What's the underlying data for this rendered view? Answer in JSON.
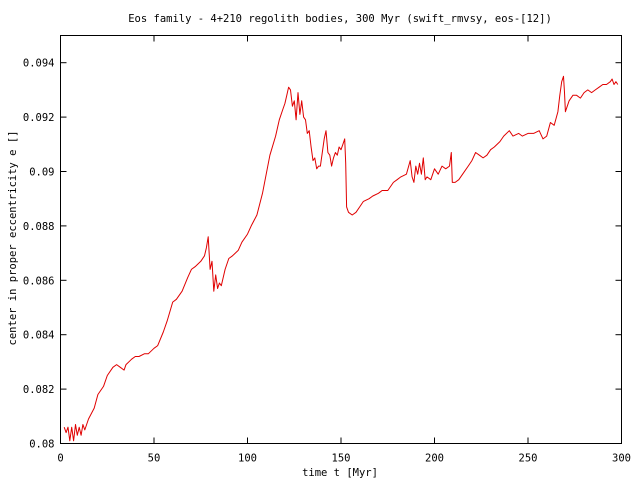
{
  "chart_data": {
    "type": "line",
    "title": "Eos family - 4+210 regolith bodies, 300 Myr (swift_rmvsy, eos-[12])",
    "xlabel": "time t [Myr]",
    "ylabel": "center in proper eccentricity e []",
    "xlim": [
      0,
      300
    ],
    "ylim": [
      0.08,
      0.095
    ],
    "xticks": [
      0,
      50,
      100,
      150,
      200,
      250,
      300
    ],
    "xtick_labels": [
      "0",
      "50",
      "100",
      "150",
      "200",
      "250",
      "300"
    ],
    "yticks": [
      0.08,
      0.082,
      0.084,
      0.086,
      0.088,
      0.09,
      0.092,
      0.094
    ],
    "ytick_labels": [
      "0.08",
      "0.082",
      "0.084",
      "0.086",
      "0.088",
      "0.09",
      "0.092",
      "0.094"
    ],
    "grid": false,
    "legend": "none",
    "series": [
      {
        "color": "#e00000",
        "points": [
          [
            2,
            0.0806
          ],
          [
            3,
            0.0804
          ],
          [
            4,
            0.0806
          ],
          [
            5,
            0.0801
          ],
          [
            6,
            0.0806
          ],
          [
            7,
            0.0801
          ],
          [
            8,
            0.0807
          ],
          [
            9,
            0.0803
          ],
          [
            10,
            0.0806
          ],
          [
            11,
            0.0803
          ],
          [
            12,
            0.0807
          ],
          [
            13,
            0.0805
          ],
          [
            15,
            0.0809
          ],
          [
            18,
            0.0813
          ],
          [
            20,
            0.0818
          ],
          [
            23,
            0.0821
          ],
          [
            25,
            0.0825
          ],
          [
            28,
            0.0828
          ],
          [
            30,
            0.0829
          ],
          [
            32,
            0.0828
          ],
          [
            34,
            0.0827
          ],
          [
            35,
            0.0829
          ],
          [
            38,
            0.0831
          ],
          [
            40,
            0.0832
          ],
          [
            42,
            0.0832
          ],
          [
            45,
            0.0833
          ],
          [
            47,
            0.0833
          ],
          [
            50,
            0.0835
          ],
          [
            52,
            0.0836
          ],
          [
            55,
            0.0841
          ],
          [
            57,
            0.0845
          ],
          [
            60,
            0.0852
          ],
          [
            62,
            0.0853
          ],
          [
            65,
            0.0856
          ],
          [
            68,
            0.0861
          ],
          [
            70,
            0.0864
          ],
          [
            72,
            0.0865
          ],
          [
            75,
            0.0867
          ],
          [
            77,
            0.0869
          ],
          [
            78,
            0.0872
          ],
          [
            79,
            0.0876
          ],
          [
            80,
            0.0864
          ],
          [
            81,
            0.0867
          ],
          [
            82,
            0.0856
          ],
          [
            83,
            0.0862
          ],
          [
            84,
            0.0857
          ],
          [
            85,
            0.0859
          ],
          [
            86,
            0.0858
          ],
          [
            88,
            0.0864
          ],
          [
            90,
            0.0868
          ],
          [
            92,
            0.0869
          ],
          [
            95,
            0.0871
          ],
          [
            97,
            0.0874
          ],
          [
            100,
            0.0877
          ],
          [
            102,
            0.088
          ],
          [
            105,
            0.0884
          ],
          [
            108,
            0.0892
          ],
          [
            110,
            0.0899
          ],
          [
            112,
            0.0906
          ],
          [
            115,
            0.0913
          ],
          [
            117,
            0.0919
          ],
          [
            119,
            0.0923
          ],
          [
            120,
            0.0925
          ],
          [
            121,
            0.0928
          ],
          [
            122,
            0.0931
          ],
          [
            123,
            0.093
          ],
          [
            124,
            0.0924
          ],
          [
            125,
            0.0926
          ],
          [
            126,
            0.0919
          ],
          [
            127,
            0.0929
          ],
          [
            128,
            0.0921
          ],
          [
            129,
            0.0926
          ],
          [
            130,
            0.092
          ],
          [
            131,
            0.0919
          ],
          [
            132,
            0.0914
          ],
          [
            133,
            0.0915
          ],
          [
            134,
            0.0909
          ],
          [
            135,
            0.0904
          ],
          [
            136,
            0.0905
          ],
          [
            137,
            0.0901
          ],
          [
            138,
            0.0902
          ],
          [
            139,
            0.0902
          ],
          [
            140,
            0.0907
          ],
          [
            141,
            0.0912
          ],
          [
            142,
            0.0915
          ],
          [
            143,
            0.0907
          ],
          [
            144,
            0.0906
          ],
          [
            145,
            0.0902
          ],
          [
            146,
            0.0905
          ],
          [
            147,
            0.0907
          ],
          [
            148,
            0.0906
          ],
          [
            149,
            0.0909
          ],
          [
            150,
            0.0908
          ],
          [
            151,
            0.091
          ],
          [
            152,
            0.0912
          ],
          [
            152.5,
            0.0903
          ],
          [
            153,
            0.0887
          ],
          [
            154,
            0.0885
          ],
          [
            156,
            0.0884
          ],
          [
            158,
            0.0885
          ],
          [
            160,
            0.0887
          ],
          [
            162,
            0.0889
          ],
          [
            165,
            0.089
          ],
          [
            167,
            0.0891
          ],
          [
            170,
            0.0892
          ],
          [
            172,
            0.0893
          ],
          [
            175,
            0.0893
          ],
          [
            178,
            0.0896
          ],
          [
            180,
            0.0897
          ],
          [
            182,
            0.0898
          ],
          [
            185,
            0.0899
          ],
          [
            187,
            0.0904
          ],
          [
            188,
            0.0898
          ],
          [
            189,
            0.0896
          ],
          [
            190,
            0.0902
          ],
          [
            191,
            0.0899
          ],
          [
            192,
            0.0903
          ],
          [
            193,
            0.0899
          ],
          [
            194,
            0.0905
          ],
          [
            195,
            0.0897
          ],
          [
            196,
            0.0898
          ],
          [
            198,
            0.0897
          ],
          [
            200,
            0.0901
          ],
          [
            202,
            0.0899
          ],
          [
            204,
            0.0902
          ],
          [
            206,
            0.0901
          ],
          [
            208,
            0.0902
          ],
          [
            209,
            0.0907
          ],
          [
            209.5,
            0.0896
          ],
          [
            211,
            0.0896
          ],
          [
            213,
            0.0897
          ],
          [
            215,
            0.0899
          ],
          [
            218,
            0.0902
          ],
          [
            220,
            0.0904
          ],
          [
            222,
            0.0907
          ],
          [
            224,
            0.0906
          ],
          [
            226,
            0.0905
          ],
          [
            228,
            0.0906
          ],
          [
            230,
            0.0908
          ],
          [
            232,
            0.0909
          ],
          [
            235,
            0.0911
          ],
          [
            237,
            0.0913
          ],
          [
            240,
            0.0915
          ],
          [
            242,
            0.0913
          ],
          [
            245,
            0.0914
          ],
          [
            247,
            0.0913
          ],
          [
            250,
            0.0914
          ],
          [
            253,
            0.0914
          ],
          [
            256,
            0.0915
          ],
          [
            258,
            0.0912
          ],
          [
            260,
            0.0913
          ],
          [
            262,
            0.0918
          ],
          [
            264,
            0.0917
          ],
          [
            266,
            0.0922
          ],
          [
            267,
            0.0928
          ],
          [
            268,
            0.0933
          ],
          [
            269,
            0.0935
          ],
          [
            269.5,
            0.0929
          ],
          [
            270,
            0.0922
          ],
          [
            272,
            0.0926
          ],
          [
            274,
            0.0928
          ],
          [
            276,
            0.0928
          ],
          [
            278,
            0.0927
          ],
          [
            280,
            0.0929
          ],
          [
            282,
            0.093
          ],
          [
            284,
            0.0929
          ],
          [
            286,
            0.093
          ],
          [
            288,
            0.0931
          ],
          [
            290,
            0.0932
          ],
          [
            292,
            0.0932
          ],
          [
            294,
            0.0933
          ],
          [
            295,
            0.0934
          ],
          [
            296,
            0.0932
          ],
          [
            297,
            0.0933
          ],
          [
            298,
            0.0932
          ]
        ]
      }
    ]
  }
}
